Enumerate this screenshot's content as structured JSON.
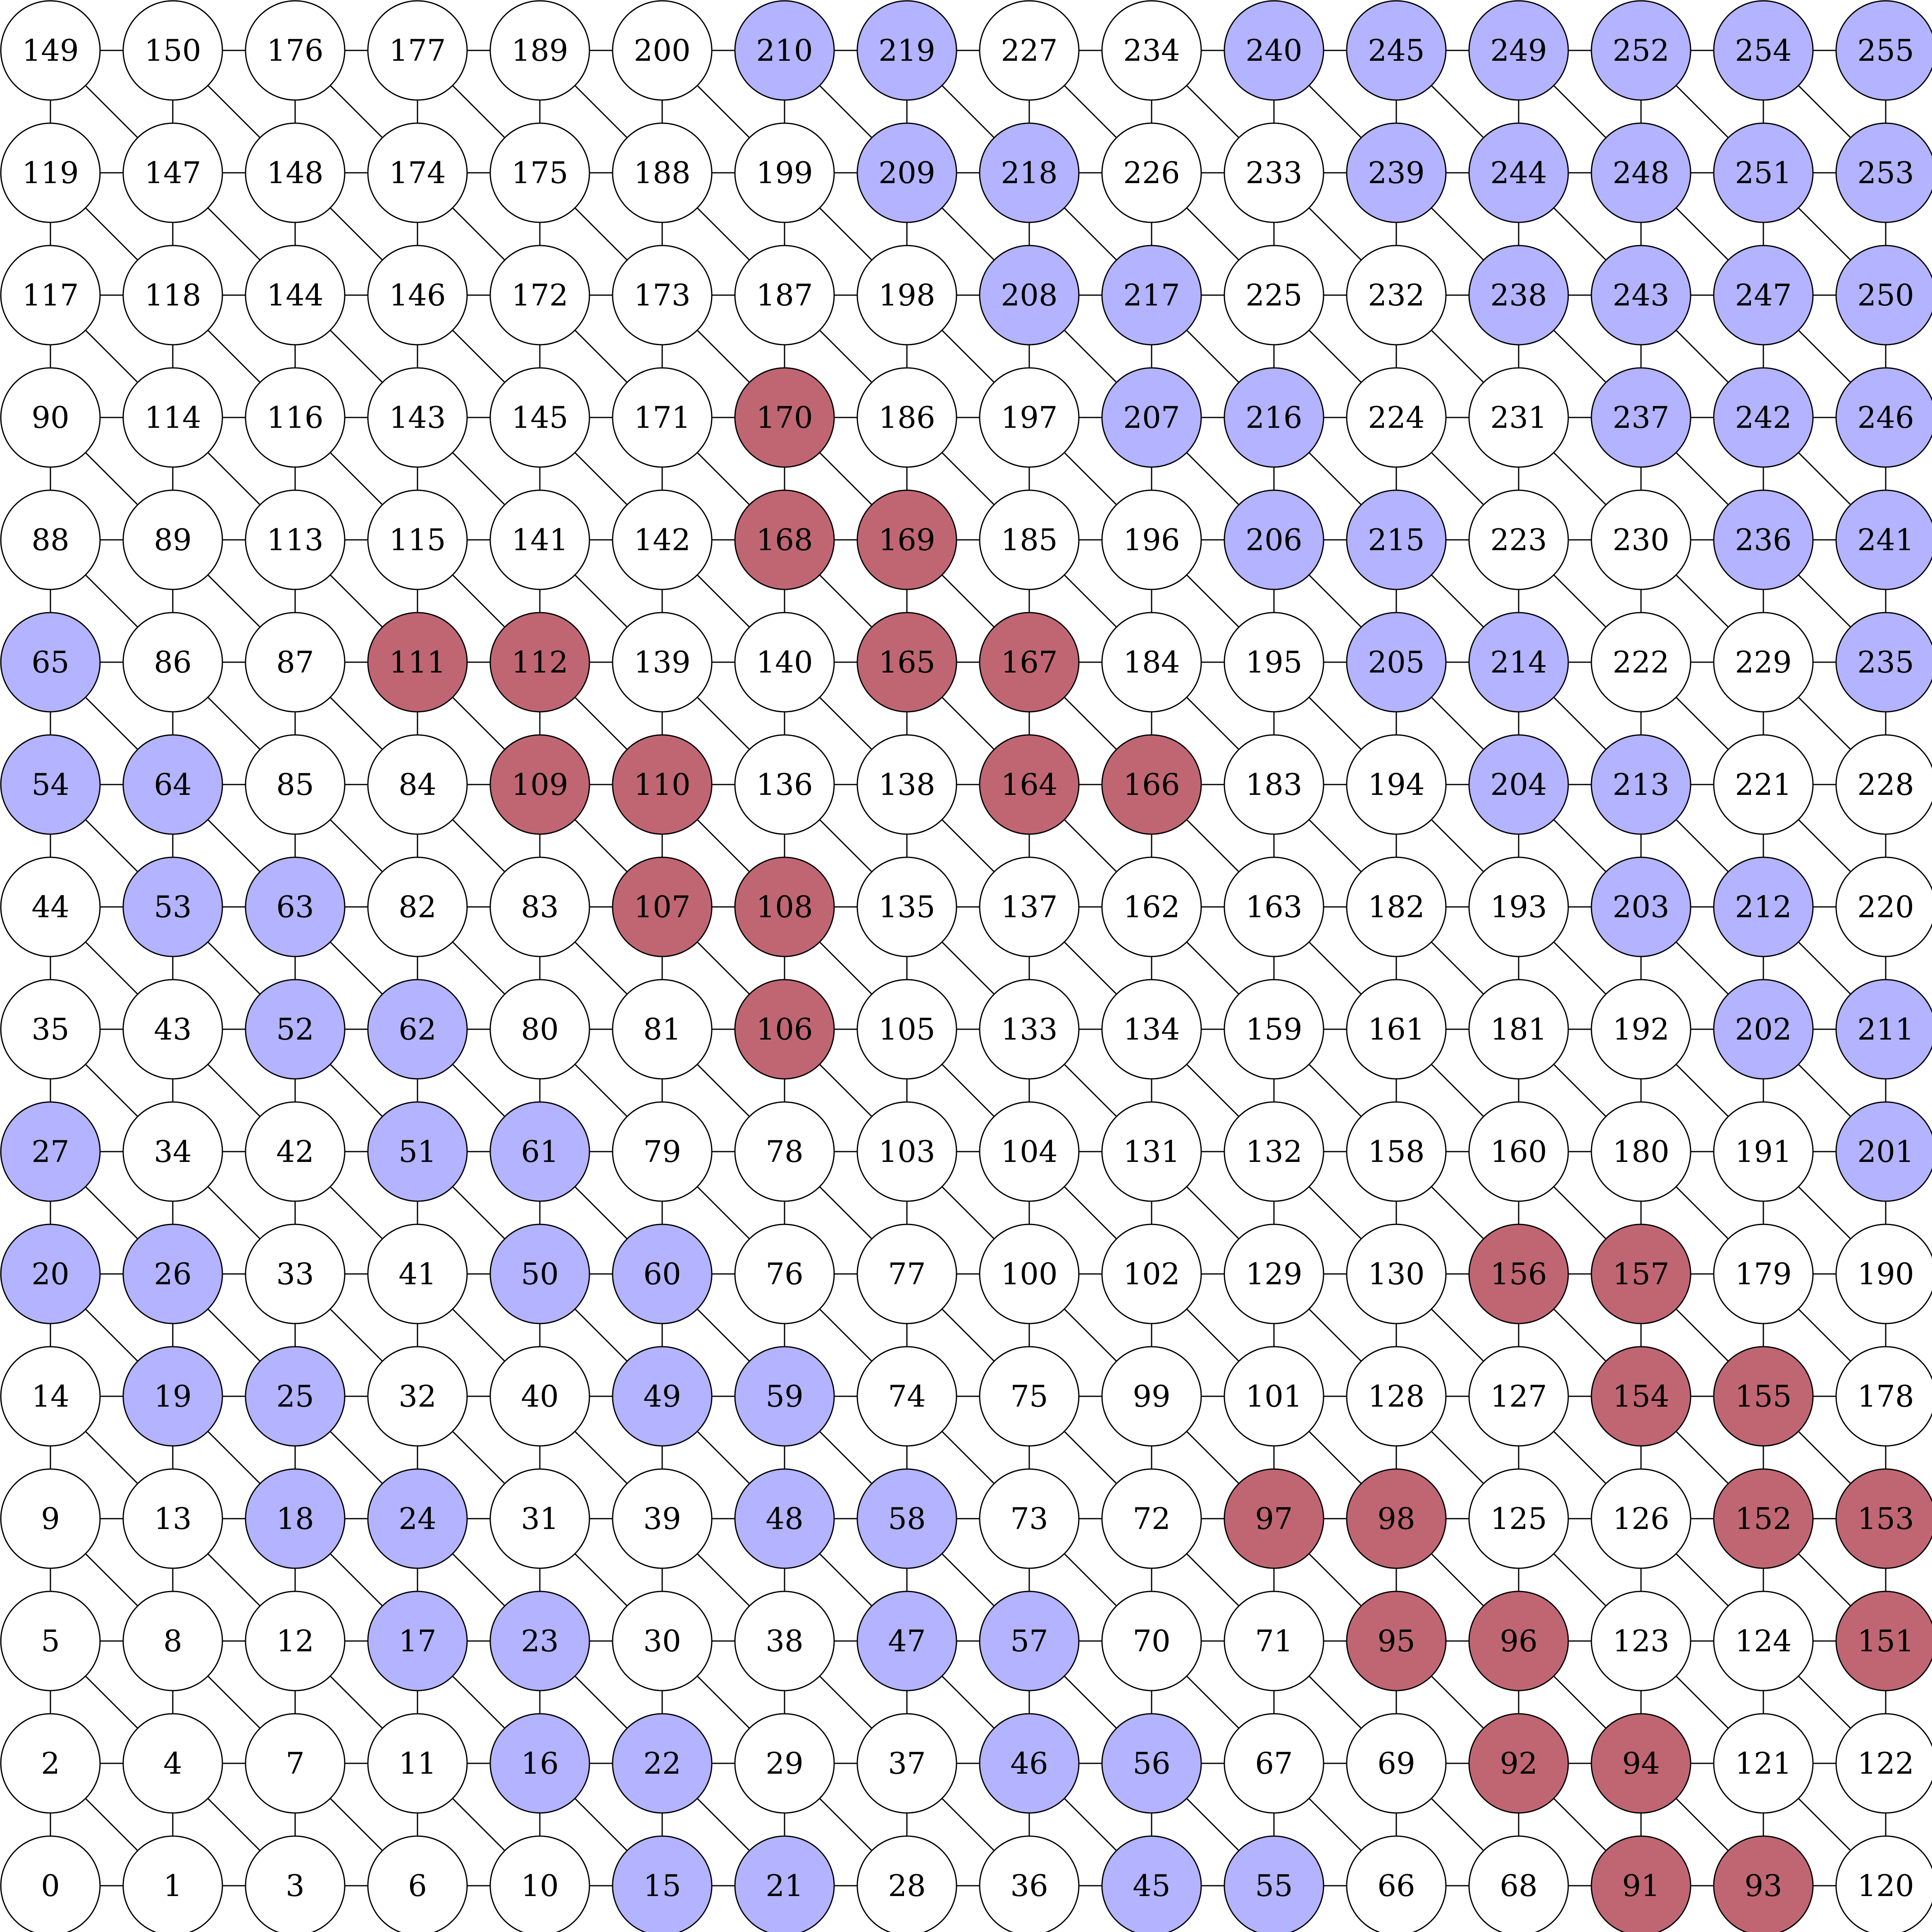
{
  "grid": {
    "rows": [
      [
        149,
        150,
        176,
        177,
        189,
        200,
        210,
        219,
        227,
        234,
        240,
        245,
        249,
        252,
        254,
        255
      ],
      [
        119,
        147,
        148,
        174,
        175,
        188,
        199,
        209,
        218,
        226,
        233,
        239,
        244,
        248,
        251,
        253
      ],
      [
        117,
        118,
        144,
        146,
        172,
        173,
        187,
        198,
        208,
        217,
        225,
        232,
        238,
        243,
        247,
        250
      ],
      [
        90,
        114,
        116,
        143,
        145,
        171,
        170,
        186,
        197,
        207,
        216,
        224,
        231,
        237,
        242,
        246
      ],
      [
        88,
        89,
        113,
        115,
        141,
        142,
        168,
        169,
        185,
        196,
        206,
        215,
        223,
        230,
        236,
        241
      ],
      [
        65,
        86,
        87,
        111,
        112,
        139,
        140,
        165,
        167,
        184,
        195,
        205,
        214,
        222,
        229,
        235
      ],
      [
        54,
        64,
        85,
        84,
        109,
        110,
        136,
        138,
        164,
        166,
        183,
        194,
        204,
        213,
        221,
        228
      ],
      [
        44,
        53,
        63,
        82,
        83,
        107,
        108,
        135,
        137,
        162,
        163,
        182,
        193,
        203,
        212,
        220
      ],
      [
        35,
        43,
        52,
        62,
        80,
        81,
        106,
        105,
        133,
        134,
        159,
        161,
        181,
        192,
        202,
        211
      ],
      [
        27,
        34,
        42,
        51,
        61,
        79,
        78,
        103,
        104,
        131,
        132,
        158,
        160,
        180,
        191,
        201
      ],
      [
        20,
        26,
        33,
        41,
        50,
        60,
        76,
        77,
        100,
        102,
        129,
        130,
        156,
        157,
        179,
        190
      ],
      [
        14,
        19,
        25,
        32,
        40,
        49,
        59,
        74,
        75,
        99,
        101,
        128,
        127,
        154,
        155,
        178
      ],
      [
        9,
        13,
        18,
        24,
        31,
        39,
        48,
        58,
        73,
        72,
        97,
        98,
        125,
        126,
        152,
        153
      ],
      [
        5,
        8,
        12,
        17,
        23,
        30,
        38,
        47,
        57,
        70,
        71,
        95,
        96,
        123,
        124,
        151
      ],
      [
        2,
        4,
        7,
        11,
        16,
        22,
        29,
        37,
        46,
        56,
        67,
        69,
        92,
        94,
        121,
        122
      ],
      [
        0,
        1,
        3,
        6,
        10,
        15,
        21,
        28,
        36,
        45,
        55,
        66,
        68,
        91,
        93,
        120
      ]
    ],
    "highlight_blue": [
      210,
      219,
      240,
      245,
      249,
      252,
      254,
      255,
      209,
      218,
      239,
      244,
      248,
      251,
      253,
      208,
      217,
      238,
      243,
      247,
      250,
      207,
      216,
      237,
      242,
      246,
      206,
      215,
      236,
      241,
      65,
      205,
      214,
      235,
      54,
      64,
      204,
      213,
      53,
      63,
      203,
      212,
      52,
      62,
      202,
      211,
      27,
      51,
      61,
      201,
      20,
      26,
      50,
      60,
      19,
      25,
      49,
      59,
      18,
      24,
      48,
      58,
      17,
      23,
      47,
      57,
      16,
      22,
      46,
      56,
      15,
      21,
      45,
      55
    ],
    "highlight_red": [
      170,
      168,
      169,
      111,
      112,
      165,
      167,
      109,
      110,
      164,
      166,
      107,
      108,
      106,
      156,
      157,
      154,
      155,
      97,
      98,
      152,
      153,
      95,
      96,
      151,
      92,
      94,
      91,
      93
    ],
    "colors": {
      "blue": "#b3b3ff",
      "red": "#c06673",
      "white": "#ffffff"
    }
  }
}
